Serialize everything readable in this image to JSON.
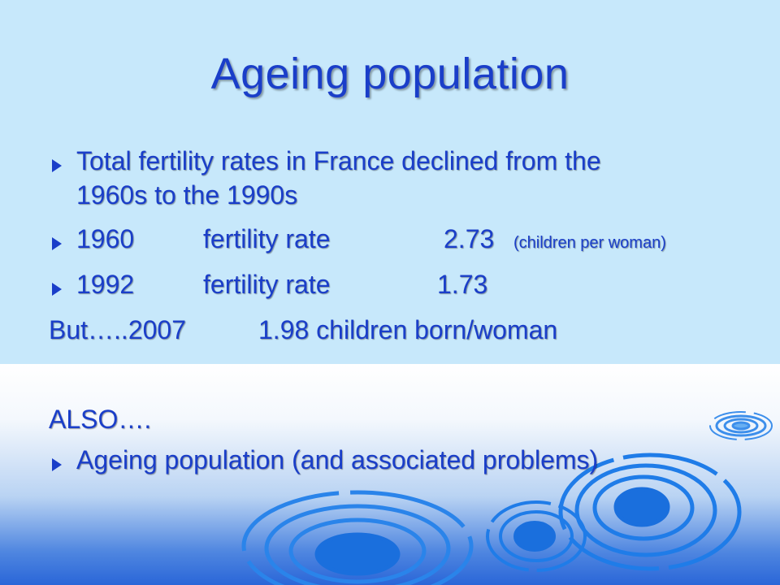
{
  "slide": {
    "title": "Ageing population",
    "bullet1": {
      "line1": "Total fertility rates in France declined from the",
      "line2": "1960s to the 1990s"
    },
    "row1960": {
      "year": "1960",
      "label": "fertility rate",
      "value": "2.73",
      "note": "(children per woman)"
    },
    "row1992": {
      "year": "1992",
      "label": "fertility rate",
      "value": "1.73"
    },
    "but_line": {
      "prefix": "But…..2007",
      "text": "1.98 children born/woman"
    },
    "also": "ALSO….",
    "bullet_last": "Ageing population (and associated problems)"
  },
  "colors": {
    "text": "#1a3ec9",
    "top_background": "#c7e8fb",
    "ripple": "#1f7ce8"
  },
  "icons": {
    "bullet": "triangle-arrow-bullet-icon",
    "decoration": "water-ripple-decoration"
  }
}
